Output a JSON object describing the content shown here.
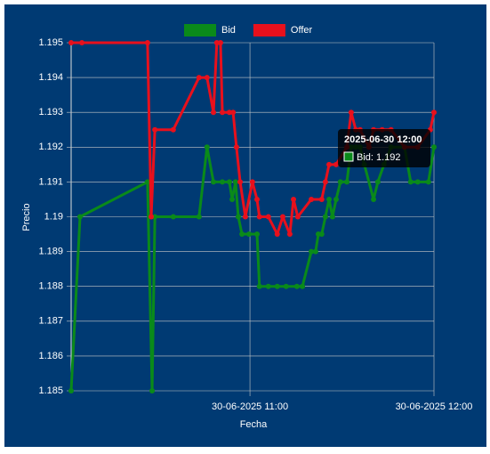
{
  "chart_data": {
    "type": "line",
    "xlabel": "Fecha",
    "ylabel": "Precio",
    "xlim": [
      1.7,
      120
    ],
    "xticks": [
      {
        "value": 60,
        "label": "30-06-2025 11:00"
      },
      {
        "value": 120,
        "label": "30-06-2025 12:00"
      }
    ],
    "ylim": [
      1.185,
      1.195
    ],
    "yticks": [
      1.185,
      1.186,
      1.187,
      1.188,
      1.189,
      1.19,
      1.191,
      1.192,
      1.193,
      1.194,
      1.195
    ],
    "grid": true,
    "legend": "top",
    "series": [
      {
        "name": "Bid",
        "color": "#0a8a1a",
        "x": [
          1.7,
          4.6,
          26.6,
          28.1,
          29.0,
          35.0,
          43.4,
          46.0,
          48.1,
          51.0,
          53.3,
          54.2,
          55.3,
          56.2,
          57.4,
          59.7,
          62.3,
          63.1,
          66.0,
          68.9,
          71.8,
          75.3,
          77.1,
          80.0,
          81.4,
          82.3,
          83.4,
          84.6,
          85.8,
          86.9,
          88.1,
          89.5,
          91.6,
          93.0,
          94.5,
          95.9,
          97.3,
          100.3,
          101.7,
          103.7,
          106.0,
          110.4,
          112.4,
          114.7,
          118.2,
          120
        ],
        "values": [
          1.185,
          1.19,
          1.191,
          1.185,
          1.19,
          1.19,
          1.19,
          1.192,
          1.191,
          1.191,
          1.191,
          1.1905,
          1.191,
          1.19,
          1.1895,
          1.1895,
          1.1895,
          1.188,
          1.188,
          1.188,
          1.188,
          1.188,
          1.188,
          1.189,
          1.189,
          1.1895,
          1.1895,
          1.19,
          1.1905,
          1.19,
          1.1905,
          1.191,
          1.191,
          1.192,
          1.192,
          1.192,
          1.1915,
          1.1905,
          1.191,
          1.1915,
          1.192,
          1.192,
          1.191,
          1.191,
          1.191,
          1.192
        ]
      },
      {
        "name": "Offer",
        "color": "#e8101c",
        "x": [
          1.7,
          5.2,
          26.6,
          27.8,
          29.0,
          35.0,
          43.4,
          46.0,
          48.1,
          49.2,
          50.4,
          51.0,
          53.3,
          54.5,
          55.6,
          56.8,
          58.5,
          60.8,
          62.3,
          63.1,
          66.0,
          68.9,
          70.7,
          73.0,
          74.2,
          75.6,
          80.0,
          83.4,
          84.6,
          85.8,
          88.1,
          91.6,
          93.0,
          94.5,
          95.9,
          98.8,
          100.3,
          103.1,
          106.0,
          110.4,
          114.7,
          118.8,
          120
        ],
        "values": [
          1.195,
          1.195,
          1.195,
          1.19,
          1.1925,
          1.1925,
          1.194,
          1.194,
          1.193,
          1.195,
          1.195,
          1.193,
          1.193,
          1.193,
          1.192,
          1.191,
          1.19,
          1.191,
          1.1905,
          1.19,
          1.19,
          1.1895,
          1.19,
          1.1895,
          1.1905,
          1.19,
          1.1905,
          1.1905,
          1.191,
          1.1915,
          1.1915,
          1.192,
          1.193,
          1.1925,
          1.1925,
          1.192,
          1.1925,
          1.1925,
          1.1925,
          1.192,
          1.192,
          1.1925,
          1.193
        ]
      }
    ],
    "tooltip": {
      "title": "2025-06-30 12:00",
      "label": "Bid: 1.192"
    }
  }
}
